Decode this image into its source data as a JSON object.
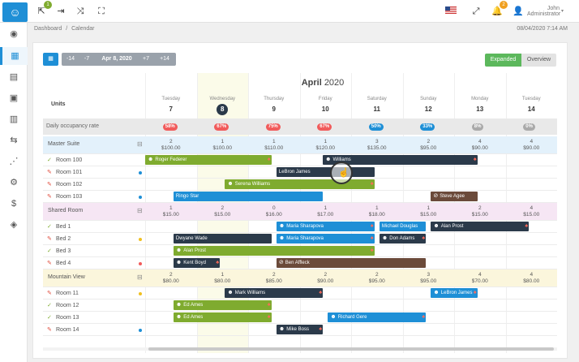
{
  "header": {
    "icons": [
      "user-check-icon",
      "sign-out-icon",
      "shuffle-icon",
      "expand-icon"
    ],
    "notif_count": "1",
    "user_name": "John",
    "user_role": "Administrator",
    "right_icons": [
      "flag-us-icon",
      "expand-icon",
      "bell-icon",
      "user-icon"
    ],
    "bell_count": "2"
  },
  "sidebar": {
    "items": [
      "dashboard-icon",
      "calendar-icon",
      "reports-icon",
      "bookings-icon",
      "inventory-icon",
      "transfer-icon",
      "analytics-icon",
      "channels-icon",
      "billing-icon",
      "support-icon"
    ]
  },
  "breadcrumb": {
    "dashboard": "Dashboard",
    "sep": "/",
    "calendar": "Calendar"
  },
  "datetime": "08/04/2020 7:14 AM",
  "nav": {
    "m14": "-14",
    "m7": "-7",
    "current": "Apr 8, 2020",
    "p7": "+7",
    "p14": "+14"
  },
  "view": {
    "expanded": "Expanded",
    "overview": "Overview"
  },
  "calendar": {
    "month": "April",
    "year": "2020",
    "units_label": "Units",
    "occupancy_label": "Daily occupancy rate",
    "days": [
      {
        "name": "Tuesday",
        "num": "7",
        "occ": "58%",
        "occ_color": "#f15b5b"
      },
      {
        "name": "Wednesday",
        "num": "8",
        "occ": "67%",
        "occ_color": "#f15b5b"
      },
      {
        "name": "Thursday",
        "num": "9",
        "occ": "75%",
        "occ_color": "#f15b5b"
      },
      {
        "name": "Friday",
        "num": "10",
        "occ": "67%",
        "occ_color": "#f15b5b"
      },
      {
        "name": "Saturday",
        "num": "11",
        "occ": "50%",
        "occ_color": "#1e8fd6"
      },
      {
        "name": "Sunday",
        "num": "12",
        "occ": "33%",
        "occ_color": "#1e8fd6"
      },
      {
        "name": "Monday",
        "num": "13",
        "occ": "8%",
        "occ_color": "#aaaaaa"
      },
      {
        "name": "Tuesday",
        "num": "14",
        "occ": "0%",
        "occ_color": "#aaaaaa"
      }
    ],
    "groups": [
      {
        "name": "Master Suite",
        "bg": "#e3f1fb",
        "avail": [
          "2",
          "1",
          "1",
          "1",
          "3",
          "2",
          "4",
          "4"
        ],
        "prices": [
          "$100.00",
          "$100.00",
          "$110.00",
          "$120.00",
          "$135.00",
          "$95.00",
          "$90.00",
          "$90.00"
        ],
        "rooms": [
          {
            "name": "Room 100",
            "status": "clean",
            "dot": ""
          },
          {
            "name": "Room 101",
            "status": "dirty",
            "dot": "#1e8fd6"
          },
          {
            "name": "Room 102",
            "status": "dirty",
            "dot": ""
          },
          {
            "name": "Room 103",
            "status": "dirty",
            "dot": "#1e8fd6"
          }
        ]
      },
      {
        "name": "Shared Room",
        "bg": "#f6e6f4",
        "avail": [
          "1",
          "2",
          "0",
          "1",
          "1",
          "1",
          "2",
          "4"
        ],
        "prices": [
          "$15.00",
          "$15.00",
          "$16.00",
          "$17.00",
          "$18.00",
          "$15.00",
          "$15.00",
          "$15.00"
        ],
        "rooms": [
          {
            "name": "Bed 1",
            "status": "clean",
            "dot": ""
          },
          {
            "name": "Bed 2",
            "status": "dirty",
            "dot": "#f0c020"
          },
          {
            "name": "Bed 3",
            "status": "clean",
            "dot": ""
          },
          {
            "name": "Bed 4",
            "status": "dirty",
            "dot": "#f15b5b"
          }
        ]
      },
      {
        "name": "Mountain View",
        "bg": "#fbf6dc",
        "avail": [
          "2",
          "1",
          "2",
          "2",
          "2",
          "3",
          "4",
          "4"
        ],
        "prices": [
          "$80.00",
          "$80.00",
          "$85.00",
          "$90.00",
          "$95.00",
          "$95.00",
          "$70.00",
          "$80.00"
        ],
        "rooms": [
          {
            "name": "Room 11",
            "status": "dirty",
            "dot": "#f0c020"
          },
          {
            "name": "Room 12",
            "status": "clean",
            "dot": ""
          },
          {
            "name": "Room 13",
            "status": "clean",
            "dot": ""
          },
          {
            "name": "Room 14",
            "status": "dirty",
            "dot": "#1e8fd6"
          }
        ]
      }
    ],
    "bookings": [
      {
        "name": "Roger Federer",
        "color": "#7fab2f",
        "row": 0,
        "from": 0,
        "to": 2.45,
        "icon": "people"
      },
      {
        "name": "Williams",
        "color": "#2b3a4a",
        "row": 0,
        "from": 3.45,
        "to": 6.45,
        "icon": "people"
      },
      {
        "name": "LeBron James",
        "color": "#2b3a4a",
        "row": 1,
        "from": 2.55,
        "to": 4.45,
        "icon": ""
      },
      {
        "name": "Serena Williams",
        "color": "#7fab2f",
        "row": 2,
        "from": 1.55,
        "to": 4.45,
        "icon": "people"
      },
      {
        "name": "Ringo Star",
        "color": "#1e8fd6",
        "row": 3,
        "from": 0.55,
        "to": 3.45,
        "icon": ""
      },
      {
        "name": "Steve Agee",
        "color": "#6b4a3a",
        "row": 3,
        "from": 5.55,
        "to": 6.45,
        "icon": "ban"
      },
      {
        "name": "Maria Sharapova",
        "color": "#1e8fd6",
        "row": 5,
        "from": 2.55,
        "to": 4.45,
        "icon": "people"
      },
      {
        "name": "Michael Douglas",
        "color": "#1e8fd6",
        "row": 5,
        "from": 4.55,
        "to": 5.45,
        "icon": ""
      },
      {
        "name": "Alan Prost",
        "color": "#2b3a4a",
        "row": 5,
        "from": 5.55,
        "to": 7.45,
        "icon": "people"
      },
      {
        "name": "Dwyane Wade",
        "color": "#2b3a4a",
        "row": 6,
        "from": 0.55,
        "to": 2.45,
        "icon": ""
      },
      {
        "name": "Maria Sharapova",
        "color": "#1e8fd6",
        "row": 6,
        "from": 2.55,
        "to": 4.45,
        "icon": "people"
      },
      {
        "name": "Don Adams",
        "color": "#2b3a4a",
        "row": 6,
        "from": 4.55,
        "to": 5.45,
        "icon": "people"
      },
      {
        "name": "Alan Prost",
        "color": "#7fab2f",
        "row": 7,
        "from": 0.55,
        "to": 4.45,
        "icon": "people"
      },
      {
        "name": "Kent Boyd",
        "color": "#2b3a4a",
        "row": 8,
        "from": 0.55,
        "to": 1.45,
        "icon": "people"
      },
      {
        "name": "Ben Affleck",
        "color": "#6b4a3a",
        "row": 8,
        "from": 2.55,
        "to": 5.45,
        "icon": "ban"
      },
      {
        "name": "Mark Williams",
        "color": "#2b3a4a",
        "row": 10,
        "from": 1.55,
        "to": 3.45,
        "icon": "people"
      },
      {
        "name": "LeBron James",
        "color": "#1e8fd6",
        "row": 10,
        "from": 5.55,
        "to": 6.45,
        "icon": "people"
      },
      {
        "name": "Ed Ames",
        "color": "#7fab2f",
        "row": 11,
        "from": 0.55,
        "to": 2.45,
        "icon": "people"
      },
      {
        "name": "Ed Ames",
        "color": "#7fab2f",
        "row": 12,
        "from": 0.55,
        "to": 2.45,
        "icon": "people"
      },
      {
        "name": "Richard Gere",
        "color": "#1e8fd6",
        "row": 12,
        "from": 3.55,
        "to": 5.45,
        "icon": "people"
      },
      {
        "name": "Mike Boss",
        "color": "#2b3a4a",
        "row": 13,
        "from": 2.55,
        "to": 3.45,
        "icon": "people"
      }
    ]
  }
}
